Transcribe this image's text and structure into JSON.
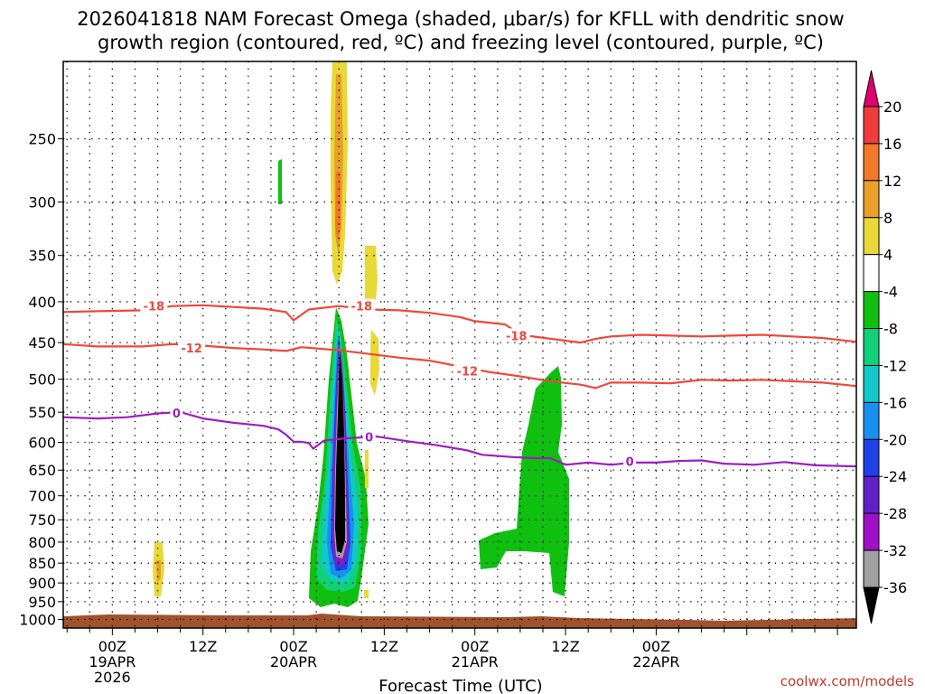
{
  "chart_data": {
    "type": "time-height cross section",
    "title_line1": "2026041818 NAM Forecast Omega (shaded, μbar/s) for KFLL with dendritic snow",
    "title_line2": "growth region (contoured, red, ºC) and freezing level (contoured, purple, ºC)",
    "xlabel": "Forecast Time (UTC)",
    "credit": "coolwx.com/models",
    "x_range_hours": [
      -6.5,
      98.5
    ],
    "y_range_hPa": [
      1025,
      200
    ],
    "y_ticks": [
      {
        "p": 250,
        "label": "250"
      },
      {
        "p": 300,
        "label": "300"
      },
      {
        "p": 350,
        "label": "350"
      },
      {
        "p": 400,
        "label": "400"
      },
      {
        "p": 450,
        "label": "450"
      },
      {
        "p": 500,
        "label": "500"
      },
      {
        "p": 550,
        "label": "550"
      },
      {
        "p": 600,
        "label": "600"
      },
      {
        "p": 650,
        "label": "650"
      },
      {
        "p": 700,
        "label": "700"
      },
      {
        "p": 750,
        "label": "750"
      },
      {
        "p": 800,
        "label": "800"
      },
      {
        "p": 850,
        "label": "850"
      },
      {
        "p": 900,
        "label": "900"
      },
      {
        "p": 950,
        "label": "950"
      },
      {
        "p": 1000,
        "label": "1000"
      }
    ],
    "x_ticks": [
      {
        "t": 0,
        "label": "00Z",
        "sub1": "19APR",
        "sub2": "2026"
      },
      {
        "t": 12,
        "label": "12Z",
        "sub1": "",
        "sub2": ""
      },
      {
        "t": 24,
        "label": "00Z",
        "sub1": "20APR",
        "sub2": ""
      },
      {
        "t": 36,
        "label": "12Z",
        "sub1": "",
        "sub2": ""
      },
      {
        "t": 48,
        "label": "00Z",
        "sub1": "21APR",
        "sub2": ""
      },
      {
        "t": 60,
        "label": "12Z",
        "sub1": "",
        "sub2": ""
      },
      {
        "t": 72,
        "label": "00Z",
        "sub1": "22APR",
        "sub2": ""
      }
    ],
    "colorbar": {
      "labels": [
        "20",
        "16",
        "12",
        "8",
        "4",
        "-4",
        "-8",
        "-12",
        "-16",
        "-20",
        "-24",
        "-28",
        "-32",
        "-36"
      ],
      "colors": [
        "#e0006e",
        "#f03c3c",
        "#f07828",
        "#e8a028",
        "#e8d838",
        "#ffffff",
        "#10c010",
        "#10d078",
        "#10c8c8",
        "#1890f0",
        "#2040e8",
        "#6020c8",
        "#a010c8",
        "#a0a0a0",
        "#000000"
      ]
    },
    "series": [
      {
        "name": "-18 C isotherm",
        "color": "#f0463c",
        "label": "-18",
        "points": [
          [
            -6.5,
            412
          ],
          [
            -2,
            411
          ],
          [
            4,
            410
          ],
          [
            8,
            405
          ],
          [
            12,
            404
          ],
          [
            16,
            406
          ],
          [
            20,
            408
          ],
          [
            23,
            412
          ],
          [
            24,
            422
          ],
          [
            26,
            409
          ],
          [
            30,
            405
          ],
          [
            34,
            409
          ],
          [
            38,
            410
          ],
          [
            42,
            413
          ],
          [
            46,
            418
          ],
          [
            48,
            423
          ],
          [
            52,
            427
          ],
          [
            54,
            440
          ],
          [
            58,
            445
          ],
          [
            62,
            450
          ],
          [
            64,
            445
          ],
          [
            66,
            442
          ],
          [
            70,
            440
          ],
          [
            74,
            441
          ],
          [
            78,
            442
          ],
          [
            82,
            441
          ],
          [
            86,
            440
          ],
          [
            90,
            442
          ],
          [
            94,
            444
          ],
          [
            98.5,
            449
          ]
        ],
        "label_at": [
          [
            5.5,
            405
          ],
          [
            33,
            405
          ],
          [
            53.5,
            441
          ]
        ]
      },
      {
        "name": "-12 C isotherm",
        "color": "#f0463c",
        "label": "-12",
        "points": [
          [
            -6.5,
            452
          ],
          [
            -2,
            455
          ],
          [
            4,
            455
          ],
          [
            8,
            452
          ],
          [
            12,
            454
          ],
          [
            16,
            457
          ],
          [
            20,
            459
          ],
          [
            23,
            461
          ],
          [
            25,
            456
          ],
          [
            30,
            460
          ],
          [
            34,
            465
          ],
          [
            38,
            470
          ],
          [
            42,
            474
          ],
          [
            46,
            482
          ],
          [
            50,
            490
          ],
          [
            54,
            496
          ],
          [
            58,
            503
          ],
          [
            62,
            508
          ],
          [
            64,
            513
          ],
          [
            66,
            505
          ],
          [
            70,
            505
          ],
          [
            74,
            506
          ],
          [
            78,
            501
          ],
          [
            82,
            502
          ],
          [
            86,
            501
          ],
          [
            90,
            503
          ],
          [
            94,
            505
          ],
          [
            98.5,
            510
          ]
        ],
        "label_at": [
          [
            10.5,
            457
          ],
          [
            47,
            488
          ]
        ]
      },
      {
        "name": "0 C freezing level",
        "color": "#9b1fc0",
        "label": "0",
        "points": [
          [
            -6.5,
            558
          ],
          [
            -2,
            560
          ],
          [
            2,
            558
          ],
          [
            6,
            552
          ],
          [
            9,
            550
          ],
          [
            12,
            560
          ],
          [
            16,
            567
          ],
          [
            20,
            572
          ],
          [
            22,
            578
          ],
          [
            23,
            587
          ],
          [
            24,
            599
          ],
          [
            25,
            599
          ],
          [
            26,
            601
          ],
          [
            26.6,
            611
          ],
          [
            28,
            597
          ],
          [
            31,
            593
          ],
          [
            35,
            590
          ],
          [
            39,
            598
          ],
          [
            43,
            605
          ],
          [
            47,
            614
          ],
          [
            49,
            622
          ],
          [
            53,
            626
          ],
          [
            56,
            628
          ],
          [
            58,
            628
          ],
          [
            60,
            640
          ],
          [
            63,
            636
          ],
          [
            66,
            640
          ],
          [
            69,
            636
          ],
          [
            72,
            636
          ],
          [
            75,
            633
          ],
          [
            78,
            632
          ],
          [
            81,
            638
          ],
          [
            85,
            640
          ],
          [
            89,
            635
          ],
          [
            93,
            641
          ],
          [
            98.5,
            643
          ]
        ],
        "label_at": [
          [
            8.5,
            551
          ],
          [
            34,
            591
          ],
          [
            68.5,
            634
          ]
        ]
      }
    ]
  }
}
